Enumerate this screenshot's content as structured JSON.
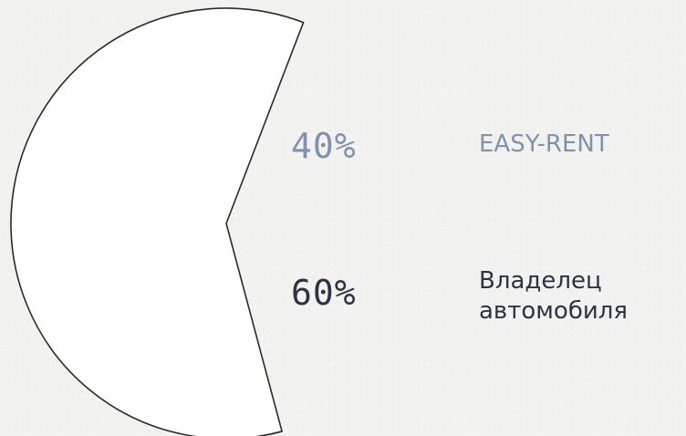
{
  "chart_data": {
    "type": "pie",
    "title": "",
    "categories": [
      "EASY-RENT",
      "Владелец автомобиля"
    ],
    "values": [
      40,
      60
    ],
    "value_labels": [
      "40%",
      "60%"
    ],
    "exploded_slice": "EASY-RENT",
    "legend": {
      "easy_rent": "EASY-RENT",
      "owner_line1": "Владелец",
      "owner_line2": "автомобиля"
    },
    "colors": {
      "slice_fill": "#ffffff",
      "slice_stroke": "#2a2a2a",
      "easy_rent_text": "#8092ad",
      "owner_text": "#2b3442",
      "background": "#f2f2f1"
    }
  }
}
